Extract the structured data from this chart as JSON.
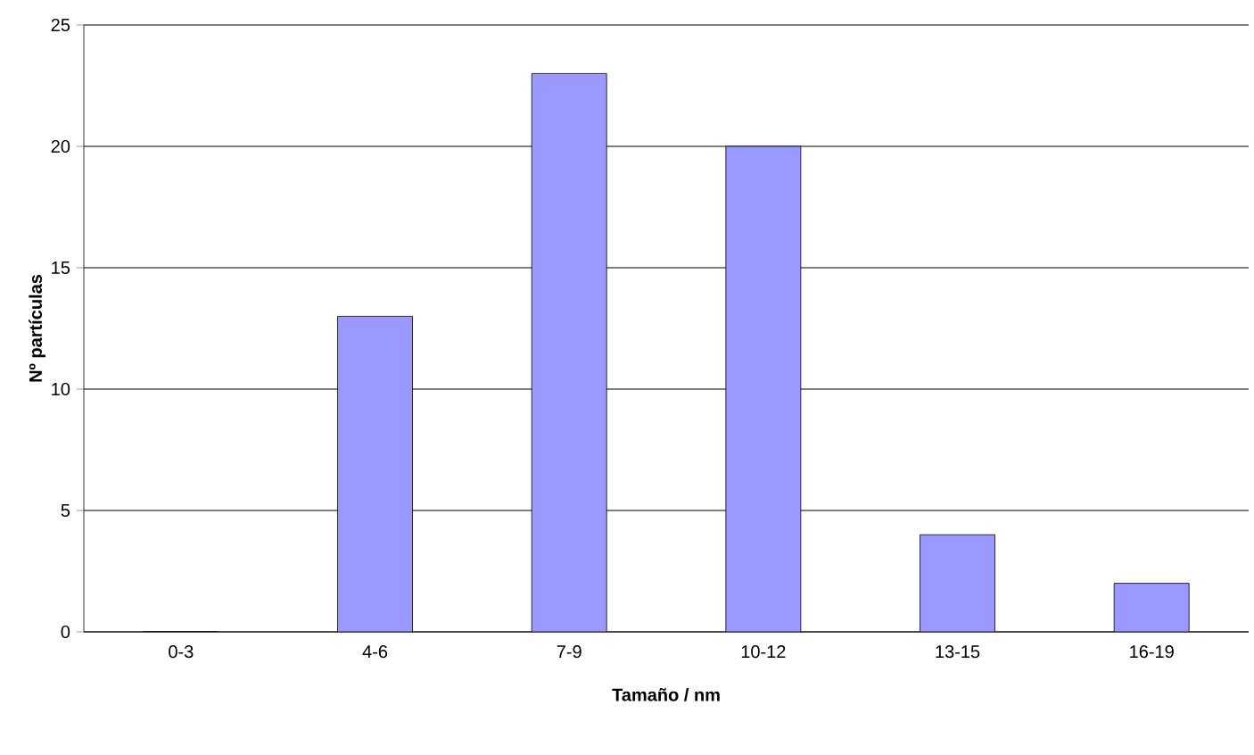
{
  "chart_data": {
    "type": "bar",
    "xlabel": "Tamaño / nm",
    "ylabel": "Nº partículas",
    "categories": [
      "0-3",
      "4-6",
      "7-9",
      "10-12",
      "13-15",
      "16-19"
    ],
    "values": [
      0,
      13,
      23,
      20,
      4,
      2
    ],
    "color": "#9999ff",
    "ylim": [
      0,
      25
    ],
    "yticks": [
      0,
      5,
      10,
      15,
      20,
      25
    ],
    "grid": "y"
  }
}
